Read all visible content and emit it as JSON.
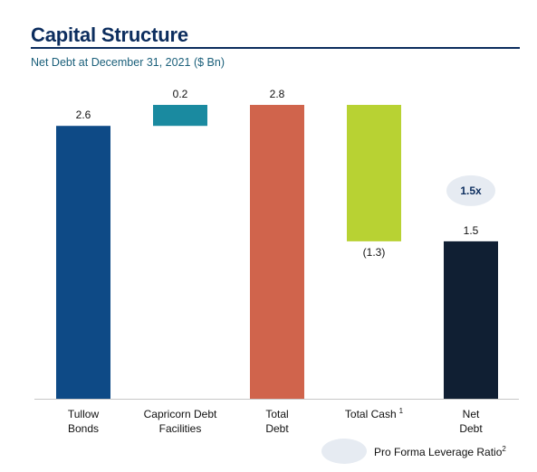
{
  "header": {
    "title": "Capital Structure",
    "subtitle": "Net Debt at December 31, 2021 ($ Bn)"
  },
  "legend": {
    "label": "Pro Forma Leverage Ratio",
    "label_sup": "2",
    "swatch_color": "#e6ebf2"
  },
  "chart_data": {
    "type": "bar",
    "subtype": "waterfall",
    "categories": [
      {
        "line1": "Tullow",
        "line2": "Bonds",
        "sup": ""
      },
      {
        "line1": "Capricorn Debt",
        "line2": "Facilities",
        "sup": ""
      },
      {
        "line1": "Total",
        "line2": "Debt",
        "sup": ""
      },
      {
        "line1": "Total Cash",
        "line2": "",
        "sup": "1"
      },
      {
        "line1": "Net",
        "line2": "Debt",
        "sup": ""
      }
    ],
    "bars": [
      {
        "start": 0,
        "end": 2.6,
        "label": "2.6",
        "color": "#0e4a86"
      },
      {
        "start": 2.6,
        "end": 2.8,
        "label": "0.2",
        "color": "#1a8aa0"
      },
      {
        "start": 0,
        "end": 2.8,
        "label": "2.8",
        "color": "#d0644c"
      },
      {
        "start": 1.5,
        "end": 2.8,
        "label": "(1.3)",
        "color": "#b8d233"
      },
      {
        "start": 0,
        "end": 1.5,
        "label": "1.5",
        "color": "#101f33"
      }
    ],
    "annotation": {
      "category_index": 4,
      "text": "1.5x",
      "bg_color": "#e6ebf2"
    },
    "ylim": [
      0,
      2.8
    ],
    "grid": false
  }
}
